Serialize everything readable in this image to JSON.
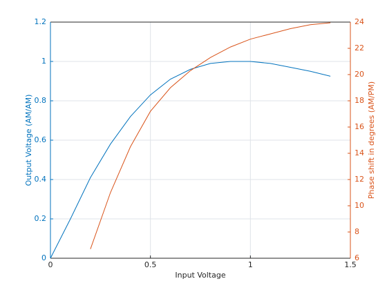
{
  "chart_data": {
    "type": "line",
    "xlabel": "Input Voltage",
    "ylabel": "Output Voltage (AM/AM)",
    "y2label": "Phase shift in degrees (AM/PM)",
    "xlim": [
      0,
      1.5
    ],
    "xticks": [
      0,
      0.5,
      1,
      1.5
    ],
    "ylim": [
      0,
      1.2
    ],
    "yticks": [
      0,
      0.2,
      0.4,
      0.6,
      0.8,
      1,
      1.2
    ],
    "y2lim": [
      6,
      24
    ],
    "y2ticks": [
      6,
      8,
      10,
      12,
      14,
      16,
      18,
      20,
      22,
      24
    ],
    "grid": true,
    "series": [
      {
        "name": "AM/AM",
        "color": "#0072bd",
        "axis": "y",
        "x": [
          0,
          0.1,
          0.2,
          0.3,
          0.4,
          0.5,
          0.6,
          0.7,
          0.8,
          0.9,
          1.0,
          1.1,
          1.2,
          1.3,
          1.4
        ],
        "values": [
          0,
          0.2,
          0.41,
          0.58,
          0.72,
          0.83,
          0.91,
          0.96,
          0.99,
          1.0,
          1.0,
          0.99,
          0.97,
          0.95,
          0.925
        ]
      },
      {
        "name": "AM/PM",
        "color": "#d95319",
        "axis": "y2",
        "x": [
          0.2,
          0.3,
          0.4,
          0.5,
          0.6,
          0.7,
          0.8,
          0.9,
          1.0,
          1.1,
          1.2,
          1.3,
          1.4
        ],
        "values": [
          6.7,
          11,
          14.5,
          17.2,
          19.0,
          20.3,
          21.3,
          22.1,
          22.7,
          23.1,
          23.5,
          23.8,
          23.95
        ]
      }
    ]
  }
}
